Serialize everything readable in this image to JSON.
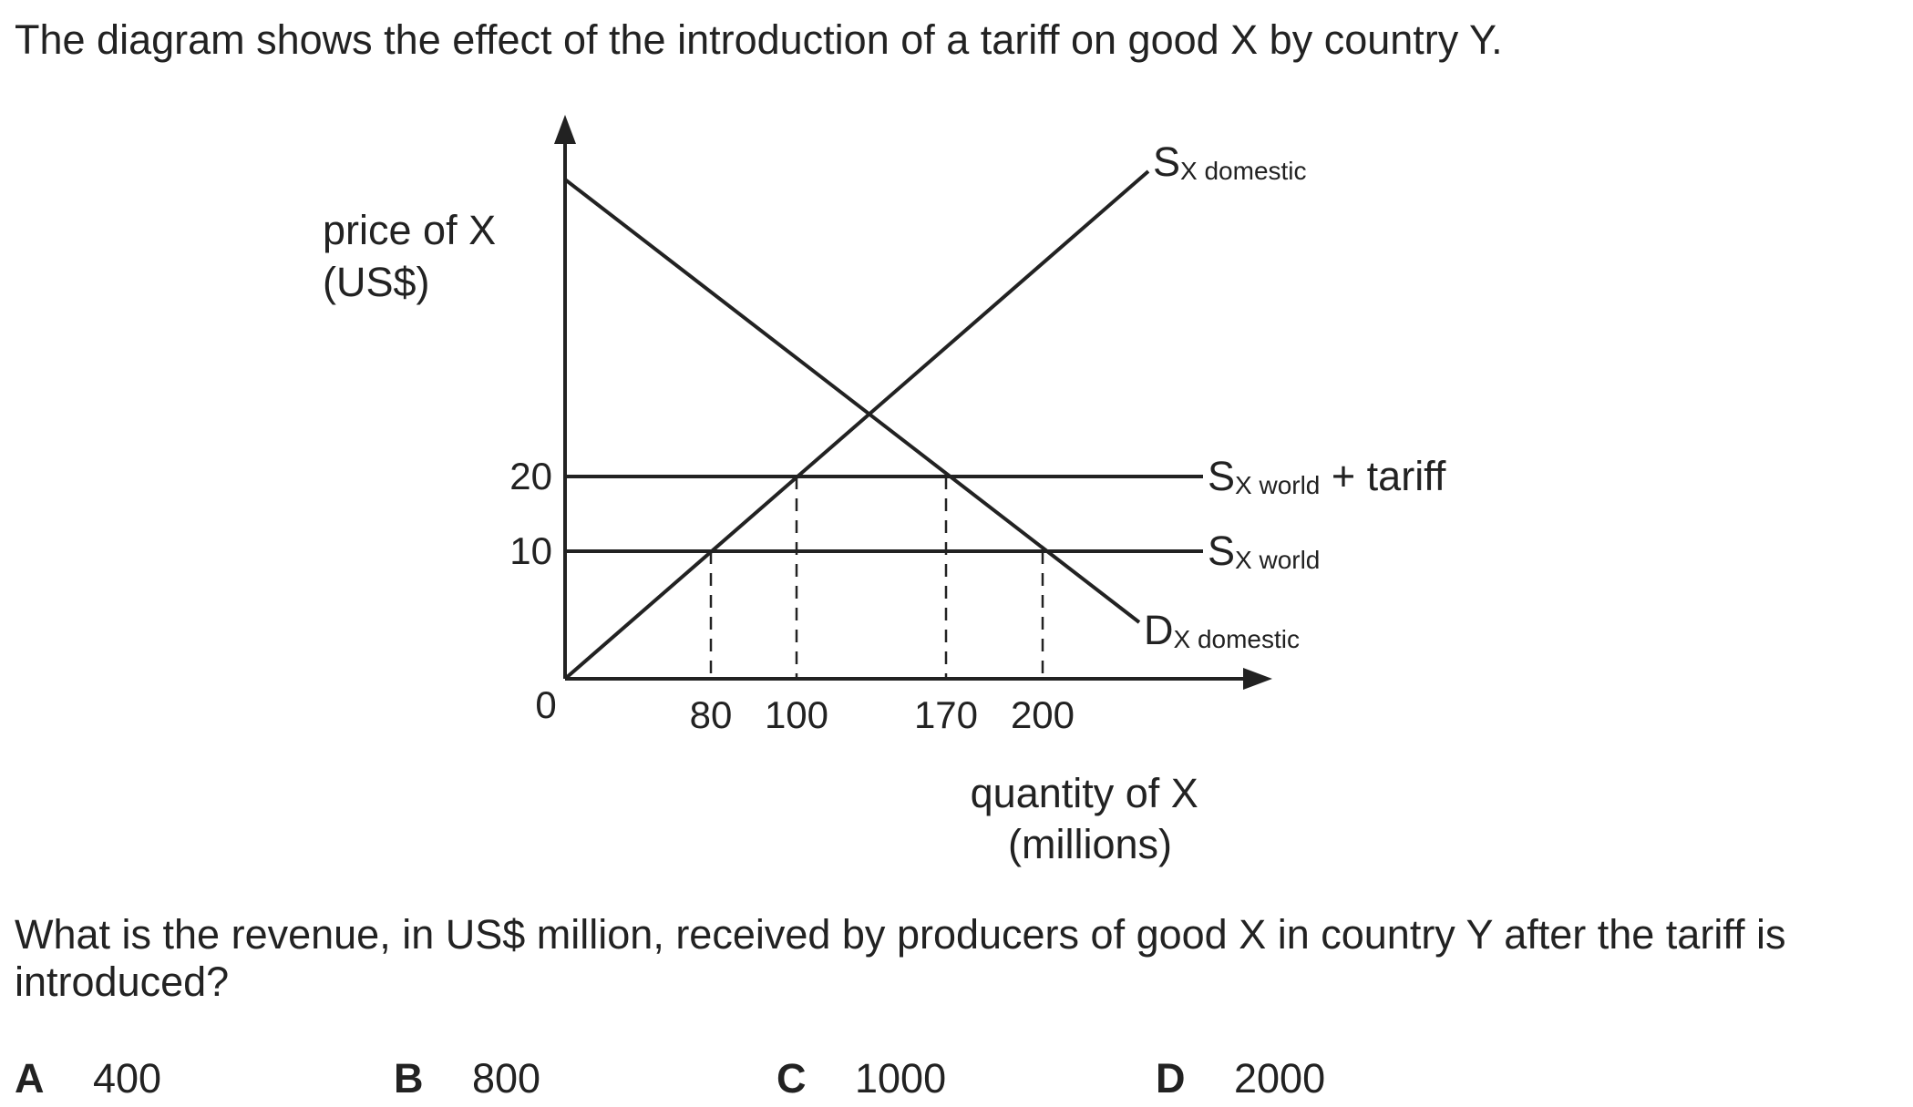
{
  "intro": "The diagram shows the effect of the introduction of a tariff on good X by country Y.",
  "diagram": {
    "y_axis_label": [
      "price of X",
      "(US$)"
    ],
    "x_axis_label": [
      "quantity of X",
      "(millions)"
    ],
    "origin_label": "0",
    "y_ticks": [
      "20",
      "10"
    ],
    "x_ticks": [
      "80",
      "100",
      "170",
      "200"
    ],
    "curves": {
      "supply_domestic": {
        "main": "S",
        "sub": "X domestic"
      },
      "supply_world_tariff": {
        "main": "S",
        "sub": "X world",
        "suffix": " + tariff"
      },
      "supply_world": {
        "main": "S",
        "sub": "X world"
      },
      "demand_domestic": {
        "main": "D",
        "sub": "X domestic"
      }
    }
  },
  "question": "What is the revenue, in US$ million, received by producers of good X in country Y after the tariff is introduced?",
  "options": [
    {
      "letter": "A",
      "value": "400"
    },
    {
      "letter": "B",
      "value": "800"
    },
    {
      "letter": "C",
      "value": "1000"
    },
    {
      "letter": "D",
      "value": "2000"
    }
  ]
}
